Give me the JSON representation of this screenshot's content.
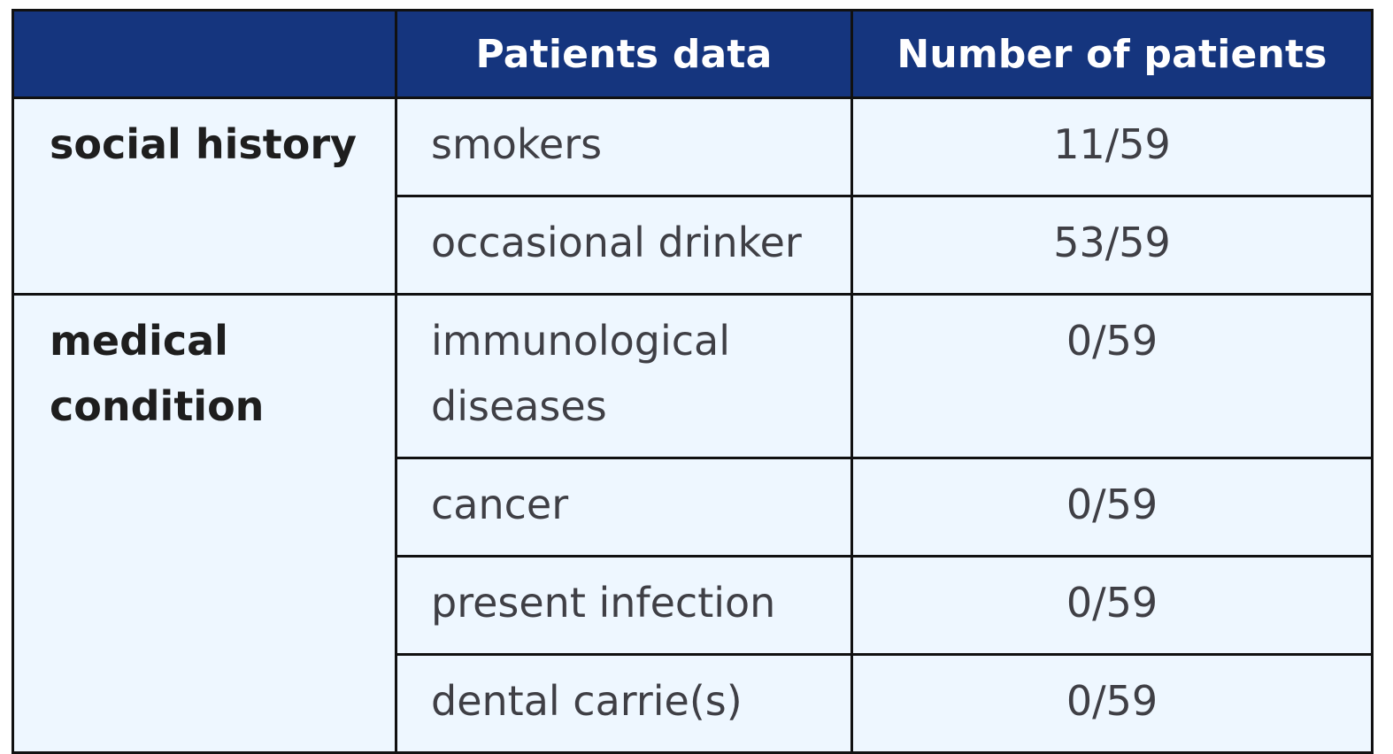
{
  "table": {
    "headers": [
      "",
      "Patients data",
      "Number of patients"
    ],
    "groups": [
      {
        "label": "social history",
        "rows": [
          {
            "item": "smokers",
            "count": "11/59"
          },
          {
            "item": "occasional drinker",
            "count": "53/59"
          }
        ]
      },
      {
        "label": "medical condition",
        "rows": [
          {
            "item": "immunological diseases",
            "count": "0/59"
          },
          {
            "item": "cancer",
            "count": "0/59"
          },
          {
            "item": "present infection",
            "count": "0/59"
          },
          {
            "item": "dental carrie(s)",
            "count": "0/59"
          }
        ]
      }
    ]
  },
  "colors": {
    "header_background": "#15357e",
    "header_text": "#ffffff",
    "cell_background": "#eef7ff",
    "border": "#111111"
  }
}
